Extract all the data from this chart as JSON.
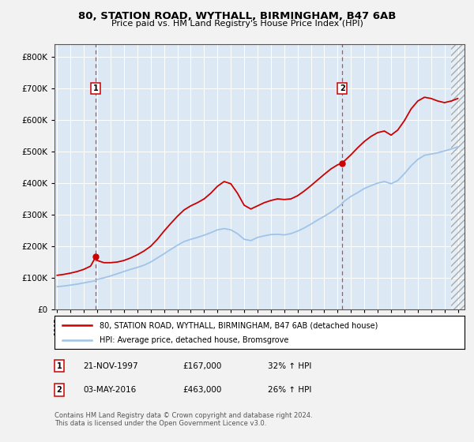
{
  "title": "80, STATION ROAD, WYTHALL, BIRMINGHAM, B47 6AB",
  "subtitle": "Price paid vs. HM Land Registry's House Price Index (HPI)",
  "ylim": [
    0,
    840000
  ],
  "yticks": [
    0,
    100000,
    200000,
    300000,
    400000,
    500000,
    600000,
    700000,
    800000
  ],
  "xticks": [
    1995,
    1996,
    1997,
    1998,
    1999,
    2000,
    2001,
    2002,
    2003,
    2004,
    2005,
    2006,
    2007,
    2008,
    2009,
    2010,
    2011,
    2012,
    2013,
    2014,
    2015,
    2016,
    2017,
    2018,
    2019,
    2020,
    2021,
    2022,
    2023,
    2024,
    2025
  ],
  "xlim_start": 1994.8,
  "xlim_end": 2025.5,
  "fig_bg_color": "#f2f2f2",
  "plot_bg_color": "#dce9f5",
  "grid_color": "#ffffff",
  "hpi_line_color": "#a0c4e8",
  "price_line_color": "#cc0000",
  "sale_marker_color": "#cc0000",
  "annotation_box_color": "#cc0000",
  "dashed_line_color": "#cc0000",
  "legend_label_price": "80, STATION ROAD, WYTHALL, BIRMINGHAM, B47 6AB (detached house)",
  "legend_label_hpi": "HPI: Average price, detached house, Bromsgrove",
  "sale1_x": 1997.89,
  "sale1_y": 167000,
  "sale1_label": "1",
  "sale1_date": "21-NOV-1997",
  "sale1_price": "£167,000",
  "sale1_hpi": "32% ↑ HPI",
  "sale2_x": 2016.34,
  "sale2_y": 463000,
  "sale2_label": "2",
  "sale2_date": "03-MAY-2016",
  "sale2_price": "£463,000",
  "sale2_hpi": "26% ↑ HPI",
  "footer_text": "Contains HM Land Registry data © Crown copyright and database right 2024.\nThis data is licensed under the Open Government Licence v3.0.",
  "hpi_data_x": [
    1995.0,
    1995.5,
    1996.0,
    1996.5,
    1997.0,
    1997.5,
    1997.89,
    1998.0,
    1998.5,
    1999.0,
    1999.5,
    2000.0,
    2000.5,
    2001.0,
    2001.5,
    2002.0,
    2002.5,
    2003.0,
    2003.5,
    2004.0,
    2004.5,
    2005.0,
    2005.5,
    2006.0,
    2006.5,
    2007.0,
    2007.5,
    2008.0,
    2008.5,
    2009.0,
    2009.5,
    2010.0,
    2010.5,
    2011.0,
    2011.5,
    2012.0,
    2012.5,
    2013.0,
    2013.5,
    2014.0,
    2014.5,
    2015.0,
    2015.5,
    2016.0,
    2016.34,
    2016.5,
    2017.0,
    2017.5,
    2018.0,
    2018.5,
    2019.0,
    2019.5,
    2020.0,
    2020.5,
    2021.0,
    2021.5,
    2022.0,
    2022.5,
    2023.0,
    2023.5,
    2024.0,
    2024.5,
    2025.0
  ],
  "hpi_data_y": [
    72000,
    74000,
    77000,
    80000,
    84000,
    88000,
    91000,
    95000,
    100000,
    106000,
    113000,
    120000,
    127000,
    133000,
    140000,
    150000,
    163000,
    176000,
    190000,
    203000,
    215000,
    222000,
    228000,
    235000,
    243000,
    252000,
    256000,
    252000,
    240000,
    222000,
    218000,
    228000,
    233000,
    237000,
    238000,
    236000,
    240000,
    248000,
    258000,
    270000,
    283000,
    295000,
    308000,
    323000,
    335000,
    343000,
    358000,
    370000,
    383000,
    392000,
    400000,
    405000,
    398000,
    408000,
    430000,
    455000,
    475000,
    488000,
    492000,
    496000,
    502000,
    508000,
    515000
  ],
  "price_data_x": [
    1995.0,
    1995.5,
    1996.0,
    1996.5,
    1997.0,
    1997.5,
    1997.89,
    1998.0,
    1998.5,
    1999.0,
    1999.5,
    2000.0,
    2000.5,
    2001.0,
    2001.5,
    2002.0,
    2002.5,
    2003.0,
    2003.5,
    2004.0,
    2004.5,
    2005.0,
    2005.5,
    2006.0,
    2006.5,
    2007.0,
    2007.5,
    2008.0,
    2008.5,
    2009.0,
    2009.5,
    2010.0,
    2010.5,
    2011.0,
    2011.5,
    2012.0,
    2012.5,
    2013.0,
    2013.5,
    2014.0,
    2014.5,
    2015.0,
    2015.5,
    2016.0,
    2016.34,
    2016.5,
    2017.0,
    2017.5,
    2018.0,
    2018.5,
    2019.0,
    2019.5,
    2020.0,
    2020.5,
    2021.0,
    2021.5,
    2022.0,
    2022.5,
    2023.0,
    2023.5,
    2024.0,
    2024.5,
    2025.0
  ],
  "price_data_y": [
    108000,
    111000,
    115000,
    120000,
    127000,
    137000,
    167000,
    155000,
    148000,
    148000,
    150000,
    155000,
    163000,
    173000,
    185000,
    200000,
    222000,
    248000,
    272000,
    295000,
    315000,
    328000,
    338000,
    350000,
    368000,
    390000,
    405000,
    398000,
    368000,
    330000,
    318000,
    328000,
    338000,
    345000,
    350000,
    348000,
    350000,
    360000,
    375000,
    392000,
    410000,
    428000,
    445000,
    458000,
    463000,
    470000,
    490000,
    512000,
    532000,
    548000,
    560000,
    565000,
    552000,
    568000,
    598000,
    635000,
    660000,
    672000,
    668000,
    660000,
    655000,
    660000,
    668000
  ]
}
